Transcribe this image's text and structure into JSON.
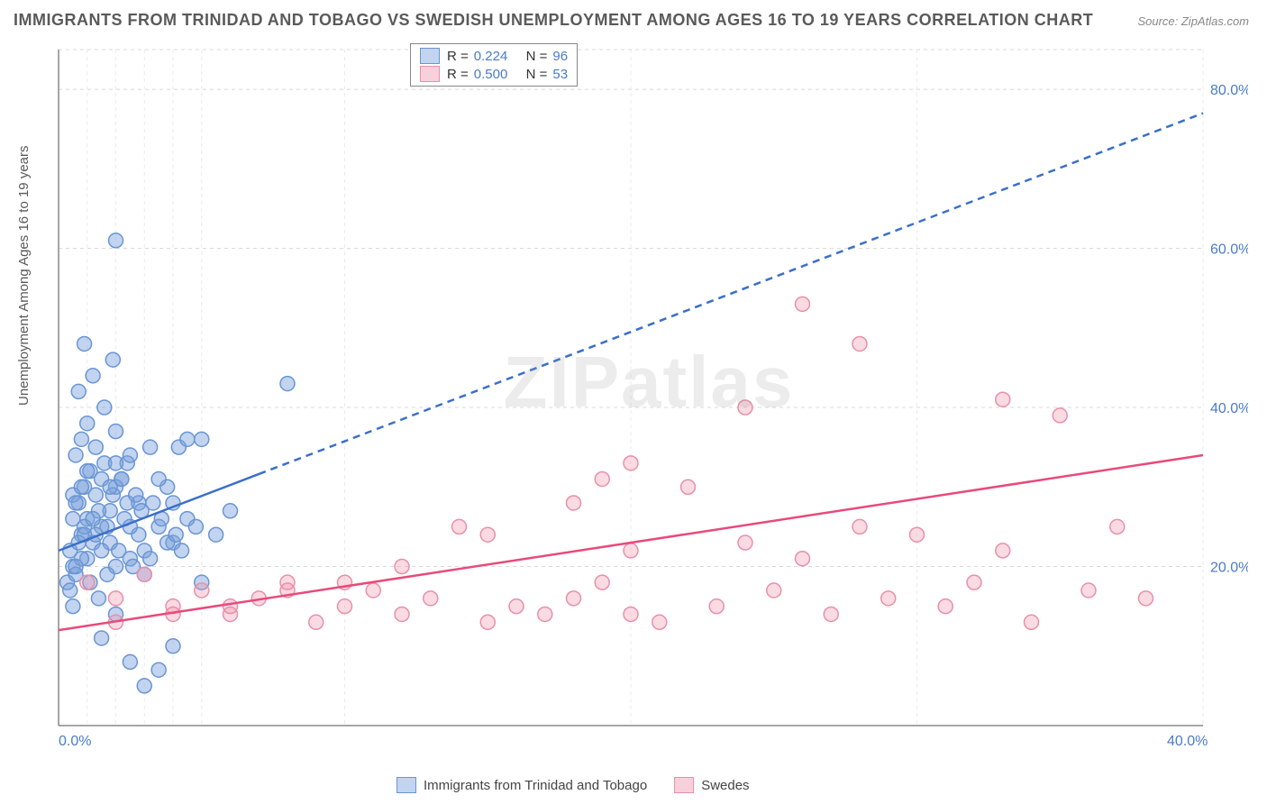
{
  "title": "IMMIGRANTS FROM TRINIDAD AND TOBAGO VS SWEDISH UNEMPLOYMENT AMONG AGES 16 TO 19 YEARS CORRELATION CHART",
  "source": "Source: ZipAtlas.com",
  "ylabel": "Unemployment Among Ages 16 to 19 years",
  "watermark": "ZIPatlas",
  "chart": {
    "type": "scatter",
    "background_color": "#ffffff",
    "grid_color": "#d8d8d8",
    "axis_color": "#888888",
    "tick_color": "#4a7bc8",
    "xlim": [
      0,
      40
    ],
    "ylim": [
      0,
      85
    ],
    "xticks": [
      {
        "v": 0,
        "label": "0.0%"
      },
      {
        "v": 40,
        "label": "40.0%"
      }
    ],
    "yticks": [
      {
        "v": 20,
        "label": "20.0%"
      },
      {
        "v": 40,
        "label": "40.0%"
      },
      {
        "v": 60,
        "label": "60.0%"
      },
      {
        "v": 80,
        "label": "80.0%"
      }
    ],
    "y_gridlines": [
      20,
      40,
      60,
      80,
      85
    ],
    "x_gridlines_minor": [
      1,
      2,
      3,
      4,
      5,
      10,
      20,
      30,
      40
    ],
    "series": [
      {
        "name": "Immigrants from Trinidad and Tobago",
        "key": "trinidad",
        "marker_color_fill": "rgba(120,160,220,0.45)",
        "marker_color_stroke": "#6a95d4",
        "marker_radius": 8,
        "line_color": "#3a6fc9",
        "line_width": 2.5,
        "trend": {
          "x1": 0,
          "y1": 22,
          "x2": 40,
          "y2": 77,
          "solid_until_x": 7
        },
        "R": "0.224",
        "N": "96",
        "points": [
          [
            0.3,
            18
          ],
          [
            0.5,
            20
          ],
          [
            0.4,
            22
          ],
          [
            0.6,
            19
          ],
          [
            0.8,
            24
          ],
          [
            1.0,
            21
          ],
          [
            0.5,
            26
          ],
          [
            0.7,
            28
          ],
          [
            1.2,
            23
          ],
          [
            0.9,
            30
          ],
          [
            1.5,
            25
          ],
          [
            1.1,
            32
          ],
          [
            0.4,
            17
          ],
          [
            2.0,
            20
          ],
          [
            1.8,
            27
          ],
          [
            0.6,
            34
          ],
          [
            1.3,
            29
          ],
          [
            2.5,
            21
          ],
          [
            1.7,
            19
          ],
          [
            0.8,
            36
          ],
          [
            3.0,
            22
          ],
          [
            2.2,
            31
          ],
          [
            1.0,
            38
          ],
          [
            3.5,
            25
          ],
          [
            0.5,
            15
          ],
          [
            1.4,
            16
          ],
          [
            2.8,
            28
          ],
          [
            4.0,
            23
          ],
          [
            3.2,
            35
          ],
          [
            1.6,
            40
          ],
          [
            4.5,
            26
          ],
          [
            2.0,
            37
          ],
          [
            5.0,
            36
          ],
          [
            0.7,
            42
          ],
          [
            3.8,
            30
          ],
          [
            1.2,
            44
          ],
          [
            5.5,
            24
          ],
          [
            2.4,
            33
          ],
          [
            6.0,
            27
          ],
          [
            4.2,
            35
          ],
          [
            1.9,
            46
          ],
          [
            0.9,
            48
          ],
          [
            3.0,
            5
          ],
          [
            2.5,
            8
          ],
          [
            4.0,
            10
          ],
          [
            3.5,
            7
          ],
          [
            1.5,
            11
          ],
          [
            5.0,
            18
          ],
          [
            2.0,
            14
          ],
          [
            8.0,
            43
          ],
          [
            2.0,
            61
          ],
          [
            1.0,
            26
          ],
          [
            1.5,
            31
          ],
          [
            2.5,
            34
          ],
          [
            0.8,
            21
          ],
          [
            1.3,
            24
          ],
          [
            2.0,
            30
          ],
          [
            3.0,
            19
          ],
          [
            1.8,
            23
          ],
          [
            0.6,
            20
          ],
          [
            4.5,
            36
          ],
          [
            1.1,
            18
          ],
          [
            2.3,
            26
          ],
          [
            3.2,
            21
          ],
          [
            0.5,
            29
          ],
          [
            1.6,
            33
          ],
          [
            2.8,
            24
          ],
          [
            4.0,
            28
          ],
          [
            0.9,
            25
          ],
          [
            1.4,
            27
          ],
          [
            2.1,
            22
          ],
          [
            3.5,
            31
          ],
          [
            0.7,
            23
          ],
          [
            1.9,
            29
          ],
          [
            2.6,
            20
          ],
          [
            4.8,
            25
          ],
          [
            1.0,
            32
          ],
          [
            2.4,
            28
          ],
          [
            3.8,
            23
          ],
          [
            0.8,
            30
          ],
          [
            1.7,
            25
          ],
          [
            2.9,
            27
          ],
          [
            4.3,
            22
          ],
          [
            1.3,
            35
          ],
          [
            2.2,
            31
          ],
          [
            3.6,
            26
          ],
          [
            0.6,
            28
          ],
          [
            1.5,
            22
          ],
          [
            2.7,
            29
          ],
          [
            4.1,
            24
          ],
          [
            1.2,
            26
          ],
          [
            2.0,
            33
          ],
          [
            3.3,
            28
          ],
          [
            0.9,
            24
          ],
          [
            1.8,
            30
          ],
          [
            2.5,
            25
          ]
        ]
      },
      {
        "name": "Swedes",
        "key": "swedes",
        "marker_color_fill": "rgba(240,150,175,0.35)",
        "marker_color_stroke": "#e890a8",
        "marker_radius": 8,
        "line_color": "#e84a7a",
        "line_width": 2.5,
        "trend": {
          "x1": 0,
          "y1": 12,
          "x2": 40,
          "y2": 34,
          "solid_until_x": 40
        },
        "R": "0.500",
        "N": "53",
        "points": [
          [
            1,
            18
          ],
          [
            2,
            16
          ],
          [
            3,
            19
          ],
          [
            4,
            15
          ],
          [
            5,
            17
          ],
          [
            6,
            14
          ],
          [
            7,
            16
          ],
          [
            8,
            18
          ],
          [
            9,
            13
          ],
          [
            10,
            15
          ],
          [
            11,
            17
          ],
          [
            12,
            14
          ],
          [
            13,
            16
          ],
          [
            14,
            25
          ],
          [
            15,
            13
          ],
          [
            16,
            15
          ],
          [
            17,
            14
          ],
          [
            18,
            16
          ],
          [
            19,
            31
          ],
          [
            19,
            18
          ],
          [
            20,
            14
          ],
          [
            20,
            22
          ],
          [
            21,
            13
          ],
          [
            22,
            30
          ],
          [
            23,
            15
          ],
          [
            24,
            23
          ],
          [
            25,
            17
          ],
          [
            26,
            53
          ],
          [
            26,
            21
          ],
          [
            27,
            14
          ],
          [
            28,
            48
          ],
          [
            28,
            25
          ],
          [
            29,
            16
          ],
          [
            30,
            24
          ],
          [
            31,
            15
          ],
          [
            32,
            18
          ],
          [
            33,
            41
          ],
          [
            33,
            22
          ],
          [
            34,
            13
          ],
          [
            35,
            39
          ],
          [
            36,
            17
          ],
          [
            37,
            25
          ],
          [
            38,
            16
          ],
          [
            24,
            40
          ],
          [
            20,
            33
          ],
          [
            18,
            28
          ],
          [
            15,
            24
          ],
          [
            12,
            20
          ],
          [
            10,
            18
          ],
          [
            8,
            17
          ],
          [
            6,
            15
          ],
          [
            4,
            14
          ],
          [
            2,
            13
          ]
        ]
      }
    ],
    "legend_top": {
      "rows": [
        {
          "swatch_fill": "rgba(120,160,220,0.45)",
          "swatch_stroke": "#6a95d4",
          "R_label": "R =",
          "R": "0.224",
          "N_label": "N =",
          "N": "96"
        },
        {
          "swatch_fill": "rgba(240,150,175,0.45)",
          "swatch_stroke": "#e890a8",
          "R_label": "R =",
          "R": "0.500",
          "N_label": "N =",
          "N": "53"
        }
      ]
    },
    "legend_bottom": [
      {
        "swatch_fill": "rgba(120,160,220,0.45)",
        "swatch_stroke": "#6a95d4",
        "label": "Immigrants from Trinidad and Tobago"
      },
      {
        "swatch_fill": "rgba(240,150,175,0.45)",
        "swatch_stroke": "#e890a8",
        "label": "Swedes"
      }
    ]
  }
}
